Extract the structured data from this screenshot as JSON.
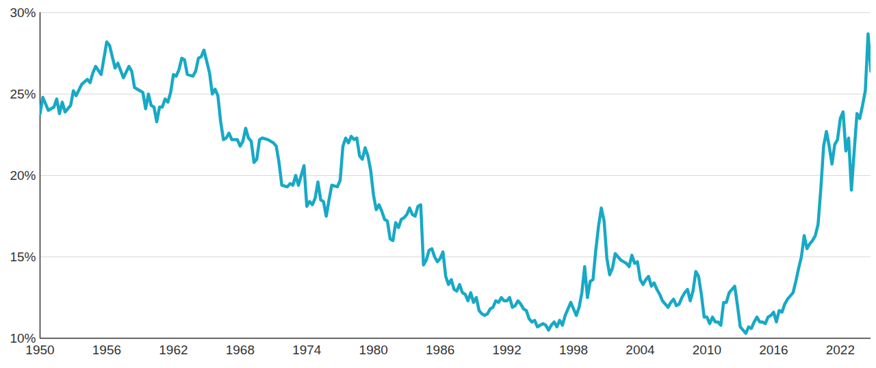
{
  "chart_data": {
    "type": "line",
    "color": "#17a9c6",
    "grid": true,
    "xlim": [
      1950,
      2024.75
    ],
    "xticks": [
      1950,
      1956,
      1962,
      1968,
      1974,
      1980,
      1986,
      1992,
      1998,
      2004,
      2010,
      2016,
      2022
    ],
    "ylim": [
      10,
      30
    ],
    "yticks": [
      {
        "value": 10,
        "label": "10%"
      },
      {
        "value": 15,
        "label": "15%"
      },
      {
        "value": 20,
        "label": "20%"
      },
      {
        "value": 25,
        "label": "25%"
      },
      {
        "value": 30,
        "label": "30%"
      }
    ],
    "x": [
      1950,
      1950.25,
      1950.75,
      1951.25,
      1951.5,
      1951.75,
      1952,
      1952.25,
      1952.75,
      1953,
      1953.25,
      1953.75,
      1954.25,
      1954.5,
      1954.75,
      1955,
      1955.5,
      1956,
      1956.25,
      1956.75,
      1957,
      1957.5,
      1958,
      1958.25,
      1958.5,
      1959,
      1959.25,
      1959.5,
      1959.75,
      1960,
      1960.25,
      1960.5,
      1960.75,
      1961,
      1961.25,
      1961.5,
      1961.75,
      1962,
      1962.25,
      1962.5,
      1962.75,
      1963,
      1963.25,
      1963.75,
      1964,
      1964.25,
      1964.5,
      1964.75,
      1965,
      1965.25,
      1965.5,
      1965.75,
      1966,
      1966.25,
      1966.5,
      1966.75,
      1967,
      1967.25,
      1967.75,
      1968,
      1968.25,
      1968.5,
      1968.75,
      1969,
      1969.25,
      1969.5,
      1969.75,
      1970,
      1970.5,
      1971,
      1971.25,
      1971.5,
      1971.75,
      1972.25,
      1972.5,
      1972.75,
      1973,
      1973.25,
      1973.75,
      1974,
      1974.25,
      1974.5,
      1974.75,
      1975,
      1975.25,
      1975.5,
      1975.75,
      1976,
      1976.25,
      1976.75,
      1977,
      1977.25,
      1977.5,
      1977.75,
      1978,
      1978.25,
      1978.5,
      1978.75,
      1979,
      1979.25,
      1979.5,
      1979.75,
      1980,
      1980.25,
      1980.5,
      1980.75,
      1981,
      1981.25,
      1981.5,
      1981.75,
      1982,
      1982.25,
      1982.5,
      1982.75,
      1983,
      1983.25,
      1983.5,
      1983.75,
      1984,
      1984.25,
      1984.5,
      1984.75,
      1985,
      1985.25,
      1985.5,
      1985.75,
      1986,
      1986.25,
      1986.5,
      1986.75,
      1987,
      1987.25,
      1987.5,
      1987.75,
      1988,
      1988.25,
      1988.5,
      1988.75,
      1989,
      1989.25,
      1989.5,
      1989.75,
      1990,
      1990.25,
      1990.5,
      1990.75,
      1991,
      1991.25,
      1991.5,
      1991.75,
      1992,
      1992.25,
      1992.5,
      1992.75,
      1993,
      1993.25,
      1993.5,
      1993.75,
      1994,
      1994.25,
      1994.5,
      1994.75,
      1995,
      1995.25,
      1995.5,
      1995.75,
      1996,
      1996.25,
      1996.5,
      1996.75,
      1997,
      1997.25,
      1997.5,
      1997.75,
      1998,
      1998.25,
      1998.5,
      1998.75,
      1999,
      1999.25,
      1999.5,
      1999.75,
      2000,
      2000.25,
      2000.5,
      2000.75,
      2001,
      2001.25,
      2001.5,
      2001.75,
      2002,
      2002.25,
      2002.5,
      2002.75,
      2003,
      2003.25,
      2003.5,
      2003.75,
      2004,
      2004.25,
      2004.5,
      2004.75,
      2005,
      2005.25,
      2005.5,
      2005.75,
      2006,
      2006.25,
      2006.5,
      2006.75,
      2007,
      2007.25,
      2007.5,
      2007.75,
      2008,
      2008.25,
      2008.5,
      2008.75,
      2009,
      2009.25,
      2009.5,
      2009.75,
      2010,
      2010.25,
      2010.5,
      2010.75,
      2011,
      2011.25,
      2011.5,
      2011.75,
      2012,
      2012.25,
      2012.5,
      2012.75,
      2013,
      2013.25,
      2013.5,
      2013.75,
      2014,
      2014.25,
      2014.5,
      2014.75,
      2015,
      2015.25,
      2015.5,
      2015.75,
      2016,
      2016.25,
      2016.5,
      2016.75,
      2017,
      2017.25,
      2017.5,
      2017.75,
      2018,
      2018.25,
      2018.5,
      2018.75,
      2019,
      2019.25,
      2019.5,
      2019.75,
      2020,
      2020.25,
      2020.5,
      2020.75,
      2021,
      2021.25,
      2021.5,
      2021.75,
      2022,
      2022.25,
      2022.5,
      2022.75,
      2023,
      2023.25,
      2023.5,
      2023.75,
      2024,
      2024.25,
      2024.5,
      2024.75
    ],
    "values": [
      23.8,
      24.8,
      24.0,
      24.2,
      24.7,
      23.8,
      24.5,
      23.9,
      24.3,
      25.2,
      24.9,
      25.6,
      25.9,
      25.7,
      26.3,
      26.7,
      26.2,
      28.2,
      28.0,
      26.6,
      26.9,
      26.0,
      26.7,
      26.4,
      25.4,
      25.2,
      25.1,
      24.1,
      25.0,
      24.3,
      24.2,
      23.3,
      24.2,
      24.2,
      24.7,
      24.5,
      25.1,
      26.2,
      26.1,
      26.5,
      27.2,
      27.1,
      26.2,
      26.1,
      26.4,
      27.2,
      27.3,
      27.7,
      27.0,
      26.3,
      25.0,
      25.3,
      24.9,
      23.3,
      22.2,
      22.3,
      22.6,
      22.2,
      22.2,
      21.8,
      22.1,
      22.9,
      22.3,
      22.1,
      20.8,
      21.0,
      22.2,
      22.3,
      22.2,
      22.0,
      21.8,
      20.8,
      19.4,
      19.3,
      19.5,
      19.4,
      20.0,
      19.4,
      20.6,
      18.1,
      18.4,
      18.2,
      18.6,
      19.6,
      18.5,
      18.4,
      17.5,
      18.5,
      19.4,
      19.3,
      19.7,
      21.8,
      22.3,
      22.0,
      22.4,
      22.2,
      22.3,
      21.2,
      21.0,
      21.7,
      21.2,
      20.3,
      18.8,
      17.9,
      18.2,
      17.8,
      17.3,
      17.2,
      16.1,
      16.0,
      17.1,
      16.8,
      17.3,
      17.4,
      17.6,
      18.0,
      17.6,
      17.5,
      18.1,
      18.2,
      14.5,
      14.8,
      15.4,
      15.5,
      15.0,
      14.7,
      14.9,
      15.3,
      13.8,
      13.3,
      13.6,
      13.0,
      12.9,
      13.3,
      12.8,
      12.7,
      12.3,
      12.8,
      12.2,
      12.5,
      11.7,
      11.5,
      11.4,
      11.5,
      11.8,
      11.9,
      12.3,
      12.2,
      12.5,
      12.3,
      12.3,
      12.5,
      11.9,
      12.0,
      12.3,
      12.1,
      11.8,
      11.7,
      11.2,
      11.0,
      11.1,
      10.7,
      10.8,
      10.9,
      10.8,
      10.5,
      10.8,
      11.0,
      10.7,
      11.1,
      10.8,
      11.4,
      11.8,
      12.2,
      11.8,
      11.4,
      11.9,
      12.8,
      14.4,
      12.5,
      13.5,
      13.6,
      15.4,
      16.9,
      18.0,
      17.2,
      14.9,
      13.9,
      14.3,
      15.2,
      15.0,
      14.8,
      14.7,
      14.6,
      14.4,
      15.1,
      14.6,
      14.7,
      13.6,
      13.3,
      13.6,
      13.8,
      13.2,
      13.4,
      13.0,
      12.7,
      12.3,
      12.1,
      11.9,
      12.2,
      12.4,
      12.0,
      12.1,
      12.5,
      12.8,
      13.0,
      12.3,
      12.9,
      14.1,
      13.8,
      12.7,
      11.3,
      11.3,
      10.9,
      11.3,
      11.0,
      11.0,
      10.8,
      12.2,
      12.2,
      12.8,
      13.0,
      13.2,
      12.0,
      10.7,
      10.5,
      10.3,
      10.7,
      10.6,
      11.0,
      11.3,
      11.0,
      11.0,
      10.9,
      11.3,
      11.4,
      11.6,
      11.0,
      11.7,
      11.6,
      12.1,
      12.4,
      12.6,
      12.8,
      13.5,
      14.3,
      15.0,
      16.3,
      15.5,
      15.8,
      16.0,
      16.3,
      17.0,
      19.2,
      21.8,
      22.7,
      21.8,
      20.7,
      21.9,
      22.2,
      23.5,
      23.9,
      21.5,
      22.3,
      19.1,
      21.5,
      23.8,
      23.5,
      24.3,
      25.2,
      28.7,
      26.4
    ]
  }
}
